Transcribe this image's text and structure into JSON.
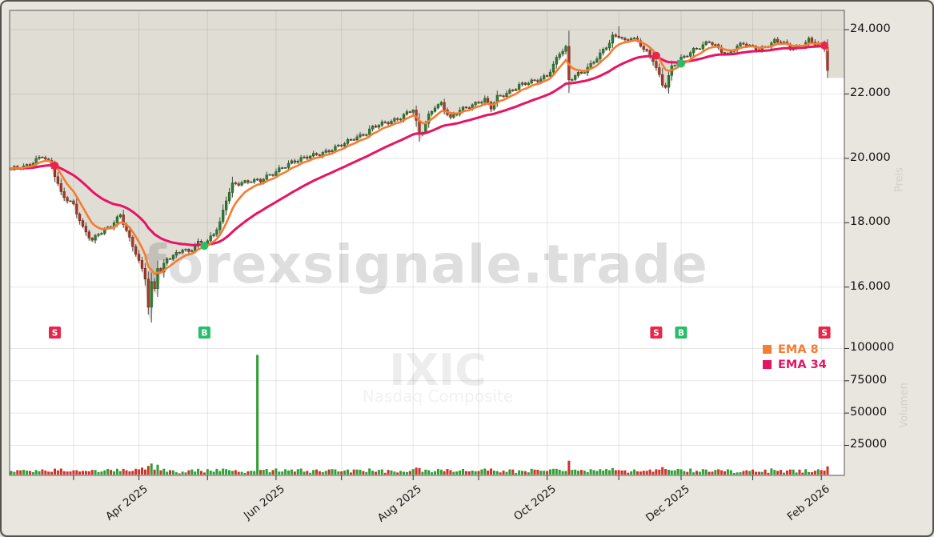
{
  "watermarks": {
    "brand": "forexsignale.trade",
    "symbol": "IXIC",
    "symbol_name": "Nasdaq Composite",
    "price_axis_label": "Preis",
    "volume_axis_label": "Volumen"
  },
  "legend": {
    "items": [
      {
        "label": "EMA 8",
        "color": "#f57c30"
      },
      {
        "label": "EMA 34",
        "color": "#e61464"
      }
    ]
  },
  "colors": {
    "window_bg": "#e9e6df",
    "plot_bg": "#dfddd4",
    "area_fill": "#ffffff",
    "grid": "rgba(110,105,95,0.17)",
    "axis_border": "#6f6f6f",
    "tick_mark": "#2a2a2a",
    "candle_up": "#2e7d32",
    "candle_up_edge": "#1b5e20",
    "candle_down": "#a93a2b",
    "candle_down_edge": "#7a2417",
    "wick": "#4a4a4a",
    "volume_up": "#2f9e33",
    "volume_down": "#cf3227",
    "ema8": "#f57c30",
    "ema34": "#e61464",
    "signal_sell": "#e9264a",
    "signal_buy": "#28be69",
    "watermark_brand": "rgba(0,0,0,0.13)",
    "watermark_symbol": "rgba(0,0,0,0.07)",
    "watermark_symbol_name": "rgba(0,0,0,0.055)"
  },
  "chart_data": {
    "type": "candlestick",
    "symbol": "IXIC",
    "name": "Nasdaq Composite",
    "date_range": "Feb 2025 - Feb 2026",
    "bars_total": 263,
    "price_axis": {
      "ticks": [
        24000,
        22000,
        20000,
        18000,
        16000
      ],
      "tick_labels": [
        "24.000",
        "22.000",
        "20.000",
        "18.000",
        "16.000"
      ],
      "visible_range": [
        14500,
        24570
      ]
    },
    "volume_axis": {
      "ticks": [
        100000,
        75000,
        50000,
        25000
      ],
      "tick_labels": [
        "100000",
        "75000",
        "50000",
        "25000"
      ]
    },
    "x_axis": {
      "month_start_indices": [
        20,
        41,
        63,
        85,
        106,
        129,
        150,
        172,
        195,
        215,
        238,
        260
      ],
      "labels": [
        {
          "index": 41,
          "text": "Apr 2025"
        },
        {
          "index": 85,
          "text": "Jun 2025"
        },
        {
          "index": 129,
          "text": "Aug 2025"
        },
        {
          "index": 172,
          "text": "Oct 2025"
        },
        {
          "index": 215,
          "text": "Dec 2025"
        },
        {
          "index": 260,
          "text": "Feb 2026"
        }
      ]
    },
    "overlays": [
      {
        "name": "EMA 8",
        "period": 8,
        "color_key": "ema8"
      },
      {
        "name": "EMA 34",
        "period": 34,
        "color_key": "ema34"
      }
    ],
    "close_anchors": [
      [
        0,
        19650
      ],
      [
        5,
        19800
      ],
      [
        10,
        20050
      ],
      [
        13,
        19750
      ],
      [
        16,
        18950
      ],
      [
        20,
        18550
      ],
      [
        23,
        17800
      ],
      [
        26,
        17450
      ],
      [
        28,
        17700
      ],
      [
        32,
        17900
      ],
      [
        35,
        18200
      ],
      [
        38,
        17500
      ],
      [
        40,
        17100
      ],
      [
        43,
        16300
      ],
      [
        44,
        15400
      ],
      [
        45,
        16100
      ],
      [
        46,
        15900
      ],
      [
        47,
        16600
      ],
      [
        48,
        16450
      ],
      [
        50,
        16900
      ],
      [
        52,
        17000
      ],
      [
        55,
        17200
      ],
      [
        57,
        17050
      ],
      [
        60,
        17350
      ],
      [
        63,
        17450
      ],
      [
        65,
        17700
      ],
      [
        67,
        18000
      ],
      [
        69,
        18700
      ],
      [
        71,
        19150
      ],
      [
        74,
        19250
      ],
      [
        77,
        19350
      ],
      [
        80,
        19300
      ],
      [
        84,
        19500
      ],
      [
        87,
        19750
      ],
      [
        90,
        19900
      ],
      [
        93,
        19950
      ],
      [
        97,
        20100
      ],
      [
        100,
        20200
      ],
      [
        102,
        20250
      ],
      [
        105,
        20350
      ],
      [
        107,
        20450
      ],
      [
        110,
        20650
      ],
      [
        114,
        20800
      ],
      [
        116,
        20950
      ],
      [
        119,
        21050
      ],
      [
        125,
        21300
      ],
      [
        129,
        21500
      ],
      [
        131,
        20700
      ],
      [
        132,
        20850
      ],
      [
        134,
        21350
      ],
      [
        136,
        21650
      ],
      [
        138,
        21700
      ],
      [
        141,
        21200
      ],
      [
        144,
        21500
      ],
      [
        147,
        21650
      ],
      [
        150,
        21750
      ],
      [
        152,
        21800
      ],
      [
        154,
        21550
      ],
      [
        156,
        21900
      ],
      [
        158,
        22000
      ],
      [
        161,
        22150
      ],
      [
        163,
        22250
      ],
      [
        165,
        22300
      ],
      [
        168,
        22400
      ],
      [
        172,
        22600
      ],
      [
        174,
        22900
      ],
      [
        176,
        23250
      ],
      [
        178,
        23400
      ],
      [
        179,
        22400
      ],
      [
        181,
        22600
      ],
      [
        184,
        22750
      ],
      [
        186,
        22900
      ],
      [
        189,
        23200
      ],
      [
        192,
        23600
      ],
      [
        193,
        23800
      ],
      [
        195,
        23850
      ],
      [
        197,
        23650
      ],
      [
        199,
        23750
      ],
      [
        202,
        23500
      ],
      [
        204,
        23300
      ],
      [
        206,
        23100
      ],
      [
        207,
        22850
      ],
      [
        209,
        22300
      ],
      [
        210,
        22250
      ],
      [
        212,
        22800
      ],
      [
        214,
        23000
      ],
      [
        217,
        23250
      ],
      [
        219,
        23400
      ],
      [
        222,
        23500
      ],
      [
        224,
        23600
      ],
      [
        227,
        23400
      ],
      [
        230,
        23250
      ],
      [
        232,
        23450
      ],
      [
        235,
        23550
      ],
      [
        237,
        23450
      ],
      [
        240,
        23400
      ],
      [
        243,
        23550
      ],
      [
        245,
        23650
      ],
      [
        248,
        23550
      ],
      [
        250,
        23400
      ],
      [
        253,
        23500
      ],
      [
        256,
        23700
      ],
      [
        258,
        23550
      ],
      [
        260,
        23500
      ],
      [
        261,
        23400
      ],
      [
        262,
        22750
      ]
    ],
    "wick_overrides": {
      "44": {
        "low": 15150
      },
      "45": {
        "low": 14900
      },
      "195": {
        "high": 24100
      }
    },
    "volume_overrides": {
      "79": {
        "value": 95000,
        "direction": "up"
      }
    },
    "signals": [
      {
        "index": 14,
        "type": "S"
      },
      {
        "index": 62,
        "type": "B"
      },
      {
        "index": 207,
        "type": "S"
      },
      {
        "index": 215,
        "type": "B"
      },
      {
        "index": 261,
        "type": "S"
      }
    ]
  }
}
